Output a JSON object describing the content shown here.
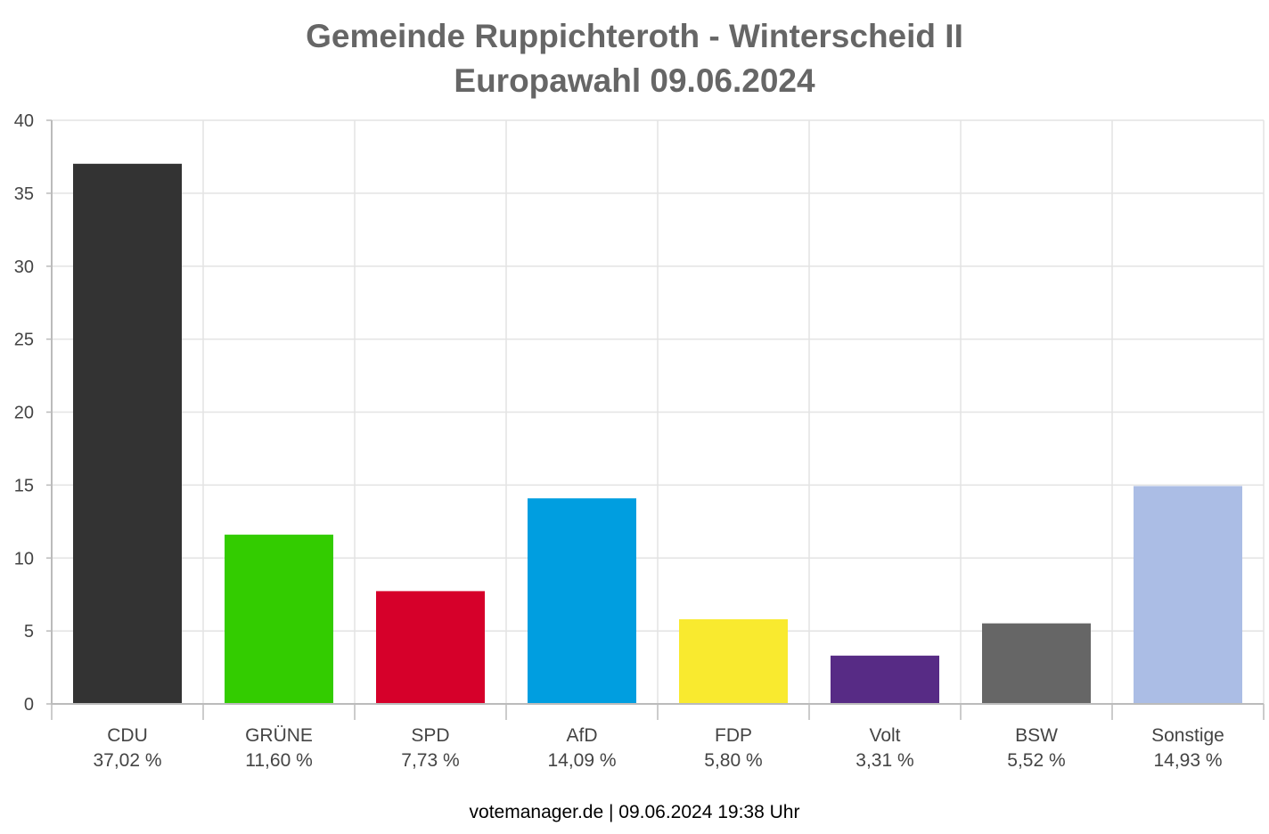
{
  "chart_data": {
    "type": "bar",
    "title": "Gemeinde Ruppichteroth - Winterscheid II",
    "subtitle": "Europawahl 09.06.2024",
    "categories": [
      "CDU",
      "GRÜNE",
      "SPD",
      "AfD",
      "FDP",
      "Volt",
      "BSW",
      "Sonstige"
    ],
    "values": [
      37.02,
      11.6,
      7.73,
      14.09,
      5.8,
      3.31,
      5.52,
      14.93
    ],
    "value_labels": [
      "37,02 %",
      "11,60 %",
      "7,73 %",
      "14,09 %",
      "5,80 %",
      "3,31 %",
      "5,52 %",
      "14,93 %"
    ],
    "colors": [
      "#333333",
      "#33cc00",
      "#d6002a",
      "#009ee0",
      "#f9ea2f",
      "#572b85",
      "#666666",
      "#abbde5"
    ],
    "ylim": [
      0,
      40
    ],
    "yticks": [
      0,
      5,
      10,
      15,
      20,
      25,
      30,
      35,
      40
    ],
    "grid": true
  },
  "footer": "votemanager.de | 09.06.2024 19:38 Uhr"
}
